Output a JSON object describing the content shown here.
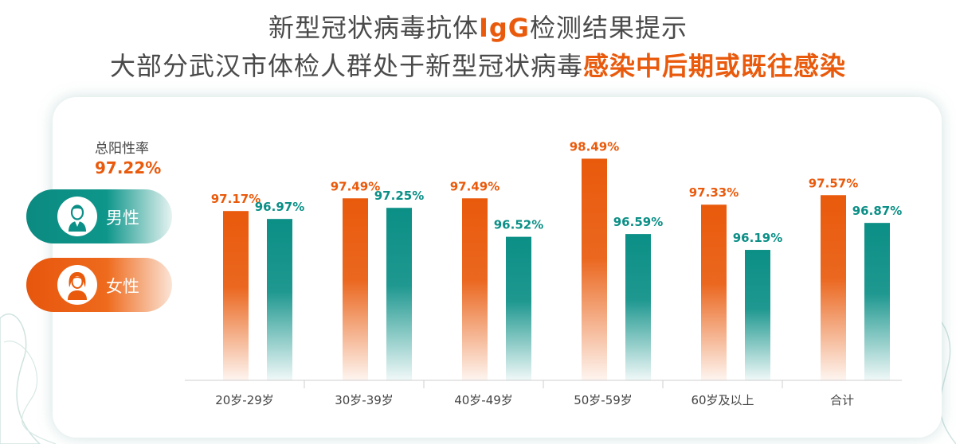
{
  "header": {
    "line1_a": "新型冠状病毒抗体",
    "line1_b": "IgG",
    "line1_c": "检测结果提示",
    "line2_a": "大部分武汉市体检人群处于新型冠状病毒",
    "line2_b": "感染中后期或既往感染"
  },
  "summary": {
    "total_label": "总阳性率",
    "total_value": "97.22%"
  },
  "legend": {
    "male": "男性",
    "female": "女性"
  },
  "colors": {
    "female": "#e95a0c",
    "male": "#0b8f86",
    "title": "#4a4a4a"
  },
  "chart_data": {
    "type": "bar",
    "categories": [
      "20岁-29岁",
      "30岁-39岁",
      "40岁-49岁",
      "50岁-59岁",
      "60岁及以上",
      "合计"
    ],
    "series": [
      {
        "name": "女性",
        "color": "#e95a0c",
        "values": [
          97.17,
          97.49,
          97.49,
          98.49,
          97.33,
          97.57
        ],
        "labels": [
          "97.17%",
          "97.49%",
          "97.49%",
          "98.49%",
          "97.33%",
          "97.57%"
        ]
      },
      {
        "name": "男性",
        "color": "#0b8f86",
        "values": [
          96.97,
          97.25,
          96.52,
          96.59,
          96.19,
          96.87
        ],
        "labels": [
          "96.97%",
          "97.25%",
          "96.52%",
          "96.59%",
          "96.19%",
          "96.87%"
        ]
      }
    ],
    "title": "",
    "xlabel": "",
    "ylabel": "",
    "ylim": [
      92.9,
      99
    ],
    "grid": false,
    "legend_position": "left"
  }
}
